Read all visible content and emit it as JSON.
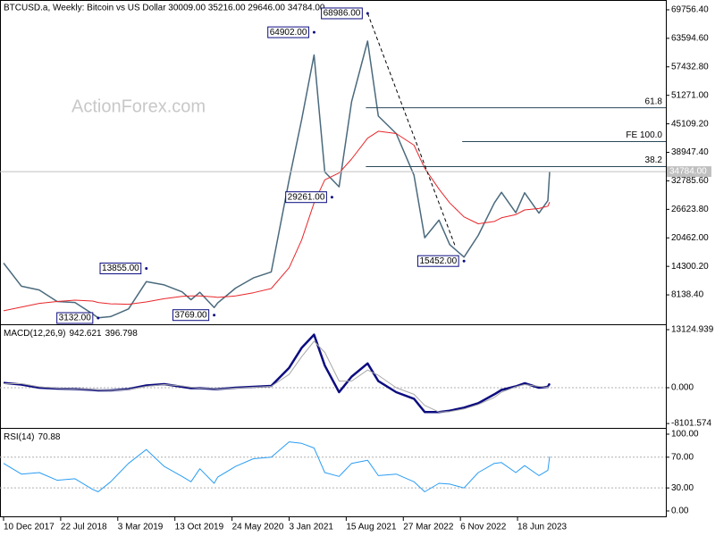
{
  "chart_data": [
    {
      "type": "line",
      "title": "BTCUSD.a, Weekly:  Bitcoin vs US Dollar  30009.00 35216.00 29646.00 34784.00",
      "watermark": "ActionForex.com",
      "x": [
        "2017-12-10",
        "2018-02-18",
        "2018-04-29",
        "2018-07-08",
        "2018-09-16",
        "2018-11-25",
        "2018-12-16",
        "2019-02-03",
        "2019-04-14",
        "2019-06-23",
        "2019-09-01",
        "2019-11-10",
        "2019-12-15",
        "2020-01-19",
        "2020-03-15",
        "2020-03-29",
        "2020-06-07",
        "2020-08-16",
        "2020-10-25",
        "2021-01-03",
        "2021-02-21",
        "2021-04-11",
        "2021-05-23",
        "2021-07-18",
        "2021-09-05",
        "2021-11-07",
        "2021-12-19",
        "2022-02-27",
        "2022-05-08",
        "2022-06-19",
        "2022-08-14",
        "2022-09-25",
        "2022-11-20",
        "2023-01-15",
        "2023-03-19",
        "2023-04-16",
        "2023-06-11",
        "2023-07-16",
        "2023-09-10",
        "2023-10-15",
        "2023-10-22"
      ],
      "xlim": [
        "2017-12-10",
        "2023-10-22"
      ],
      "xticks": [
        {
          "value": "2017-12-10",
          "label": "10 Dec 2017"
        },
        {
          "value": "2018-07-22",
          "label": "22 Jul 2018"
        },
        {
          "value": "2019-03-03",
          "label": "3 Mar 2019"
        },
        {
          "value": "2019-10-13",
          "label": "13 Oct 2019"
        },
        {
          "value": "2020-05-24",
          "label": "24 May 2020"
        },
        {
          "value": "2021-01-03",
          "label": "3 Jan 2021"
        },
        {
          "value": "2021-08-15",
          "label": "15 Aug 2021"
        },
        {
          "value": "2022-03-27",
          "label": "27 Mar 2022"
        },
        {
          "value": "2022-11-06",
          "label": "6 Nov 2022"
        },
        {
          "value": "2023-06-18",
          "label": "18 Jun 2023"
        }
      ],
      "series": [
        {
          "name": "BTCUSD.a",
          "color": "#4a6a7d",
          "values": [
            15000,
            10000,
            9200,
            6700,
            6500,
            4000,
            3200,
            3450,
            5100,
            11000,
            10300,
            8800,
            7100,
            8700,
            5400,
            6400,
            9600,
            11800,
            13100,
            33000,
            46000,
            60000,
            34700,
            31500,
            49900,
            63000,
            46800,
            43000,
            34000,
            20500,
            24300,
            19000,
            16300,
            21000,
            28000,
            30300,
            25900,
            30200,
            25800,
            28500,
            34784
          ]
        },
        {
          "color": "#e8262a",
          "values": [
            4700,
            5500,
            6300,
            6700,
            7000,
            6800,
            6500,
            6200,
            6100,
            6600,
            7300,
            7800,
            7900,
            7900,
            7700,
            7600,
            7900,
            8600,
            9500,
            14000,
            20000,
            28000,
            33000,
            34500,
            37500,
            42000,
            43500,
            43000,
            40500,
            35500,
            31000,
            28000,
            25000,
            23500,
            24000,
            24800,
            25500,
            26500,
            26800,
            27300,
            28200
          ]
        }
      ],
      "ylim": [
        1975,
        71875
      ],
      "yticks": [
        {
          "value": 69756.4,
          "label": "69756.40"
        },
        {
          "value": 63594.6,
          "label": "63594.60"
        },
        {
          "value": 57432.8,
          "label": "57432.80"
        },
        {
          "value": 51271,
          "label": "51271.00"
        },
        {
          "value": 45109.2,
          "label": "45109.20"
        },
        {
          "value": 38947.4,
          "label": "38947.40"
        },
        {
          "value": 32785.6,
          "label": "32785.60"
        },
        {
          "value": 26623.8,
          "label": "26623.80"
        },
        {
          "value": 20462,
          "label": "20462.00"
        },
        {
          "value": 14300.2,
          "label": "14300.20"
        },
        {
          "value": 8138.4,
          "label": "8138.40"
        }
      ],
      "last_price": {
        "value": 34784,
        "label": "34784.00"
      },
      "annotations": [
        {
          "x": "2021-11-07",
          "value": 68986,
          "label": "68986.00"
        },
        {
          "x": "2021-04-11",
          "value": 64902,
          "label": "64902.00"
        },
        {
          "x": "2021-06-20",
          "value": 29261,
          "label": "29261.00"
        },
        {
          "x": "2019-06-23",
          "value": 13855,
          "label": "13855.00"
        },
        {
          "x": "2018-12-16",
          "value": 3132,
          "label": "3132.00"
        },
        {
          "x": "2020-03-15",
          "value": 3769,
          "label": "3769.00"
        },
        {
          "x": "2022-11-20",
          "value": 15452,
          "label": "15452.00"
        }
      ],
      "fib_levels": [
        {
          "x": "2021-10-31",
          "value": 48584,
          "label": "61.8"
        },
        {
          "x": "2022-11-13",
          "value": 41265,
          "label": "FE 100.0"
        },
        {
          "x": "2021-10-31",
          "value": 35873,
          "label": "38.2"
        }
      ],
      "trendline": {
        "x": [
          "2021-11-07",
          "2022-10-16"
        ],
        "values": [
          68986,
          18731
        ]
      }
    },
    {
      "type": "line",
      "title": "MACD(12,26,9)",
      "x": [
        "2017-12-10",
        "2018-02-18",
        "2018-04-29",
        "2018-07-08",
        "2018-09-16",
        "2018-11-25",
        "2018-12-16",
        "2019-02-03",
        "2019-04-14",
        "2019-06-23",
        "2019-09-01",
        "2019-11-10",
        "2019-12-15",
        "2020-01-19",
        "2020-03-15",
        "2020-03-29",
        "2020-06-07",
        "2020-08-16",
        "2020-10-25",
        "2021-01-03",
        "2021-02-21",
        "2021-04-11",
        "2021-05-23",
        "2021-07-18",
        "2021-09-05",
        "2021-11-07",
        "2021-12-19",
        "2022-02-27",
        "2022-05-08",
        "2022-06-19",
        "2022-08-14",
        "2022-09-25",
        "2022-11-20",
        "2023-01-15",
        "2023-03-19",
        "2023-04-16",
        "2023-06-11",
        "2023-07-16",
        "2023-09-10",
        "2023-10-15",
        "2023-10-22"
      ],
      "xlim": [
        "2017-12-10",
        "2023-10-22"
      ],
      "series": [
        {
          "color": "#0c0c80",
          "values": [
            1100,
            700,
            0,
            -200,
            -300,
            -500,
            -600,
            -600,
            -300,
            500,
            800,
            200,
            -100,
            -100,
            -300,
            -300,
            0,
            200,
            400,
            4500,
            9000,
            12000,
            5000,
            -1000,
            2500,
            5500,
            1500,
            -1000,
            -2500,
            -5500,
            -5500,
            -5200,
            -4500,
            -3500,
            -1500,
            -500,
            300,
            1000,
            0,
            200,
            942.621
          ]
        },
        {
          "color": "#a8a8a8",
          "values": [
            900,
            900,
            200,
            -100,
            -300,
            -400,
            -500,
            -600,
            -400,
            300,
            700,
            400,
            100,
            -100,
            -200,
            -300,
            -100,
            100,
            300,
            3000,
            7000,
            10500,
            8000,
            1500,
            1500,
            4000,
            2800,
            0,
            -1500,
            -4000,
            -5500,
            -5400,
            -4800,
            -3800,
            -2200,
            -1000,
            200,
            700,
            300,
            100,
            396.798
          ]
        }
      ],
      "ylim": [
        -8888,
        13938
      ],
      "yticks": [
        13124.939,
        {
          "value": 0,
          "label": "0.000"
        },
        -8101.574
      ],
      "levels": [
        0
      ]
    },
    {
      "type": "line",
      "title": "RSI(14)",
      "x": [
        "2017-12-10",
        "2018-02-18",
        "2018-04-29",
        "2018-07-08",
        "2018-09-16",
        "2018-11-25",
        "2018-12-16",
        "2019-02-03",
        "2019-04-14",
        "2019-06-23",
        "2019-09-01",
        "2019-11-10",
        "2019-12-15",
        "2020-01-19",
        "2020-03-15",
        "2020-03-29",
        "2020-06-07",
        "2020-08-16",
        "2020-10-25",
        "2021-01-03",
        "2021-02-21",
        "2021-04-11",
        "2021-05-23",
        "2021-07-18",
        "2021-09-05",
        "2021-11-07",
        "2021-12-19",
        "2022-02-27",
        "2022-05-08",
        "2022-06-19",
        "2022-08-14",
        "2022-09-25",
        "2022-11-20",
        "2023-01-15",
        "2023-03-19",
        "2023-04-16",
        "2023-06-11",
        "2023-07-16",
        "2023-09-10",
        "2023-10-15",
        "2023-10-22"
      ],
      "xlim": [
        "2017-12-10",
        "2023-10-22"
      ],
      "series": [
        {
          "color": "#2a9df4",
          "values": [
            62,
            48,
            50,
            40,
            42,
            28,
            25,
            38,
            62,
            80,
            58,
            45,
            38,
            55,
            36,
            44,
            58,
            68,
            70,
            90,
            88,
            82,
            50,
            45,
            62,
            66,
            46,
            48,
            38,
            25,
            36,
            35,
            30,
            50,
            62,
            63,
            50,
            59,
            46,
            53,
            70.88
          ]
        }
      ],
      "ylim": [
        -7,
        105.8
      ],
      "yticks": [
        {
          "value": 100,
          "label": "100.00"
        },
        {
          "value": 70,
          "label": "70.00"
        },
        {
          "value": 30,
          "label": "30.00"
        },
        {
          "value": 0,
          "label": "0.00"
        }
      ],
      "levels": [
        70,
        30
      ]
    }
  ]
}
